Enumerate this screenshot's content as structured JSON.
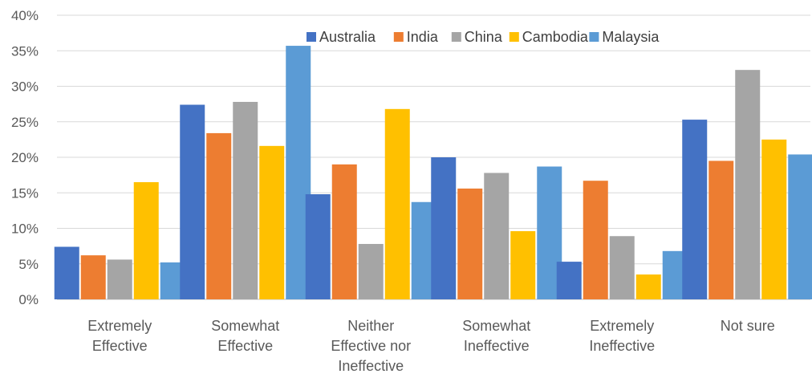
{
  "chart_data": {
    "type": "bar",
    "title": "",
    "xlabel": "",
    "ylabel": "",
    "ylim": [
      0,
      0.4
    ],
    "yticks": [
      "0%",
      "5%",
      "10%",
      "15%",
      "20%",
      "25%",
      "30%",
      "35%",
      "40%"
    ],
    "grid": true,
    "legend_position": "top-right",
    "categories": [
      [
        "Extremely",
        "Effective"
      ],
      [
        "Somewhat",
        "Effective"
      ],
      [
        "Neither",
        "Effective nor",
        "Ineffective"
      ],
      [
        "Somewhat",
        "Ineffective"
      ],
      [
        "Extremely",
        "Ineffective"
      ],
      [
        "Not sure"
      ]
    ],
    "series": [
      {
        "name": "Australia",
        "color": "#4472C4",
        "values": [
          0.074,
          0.274,
          0.148,
          0.2,
          0.053,
          0.253
        ]
      },
      {
        "name": "India",
        "color": "#ED7D31",
        "values": [
          0.062,
          0.234,
          0.19,
          0.156,
          0.167,
          0.195
        ]
      },
      {
        "name": "China",
        "color": "#A5A5A5",
        "values": [
          0.056,
          0.278,
          0.078,
          0.178,
          0.089,
          0.323
        ]
      },
      {
        "name": "Cambodia",
        "color": "#FFC000",
        "values": [
          0.165,
          0.216,
          0.268,
          0.096,
          0.035,
          0.225
        ]
      },
      {
        "name": "Malaysia",
        "color": "#5B9BD5",
        "values": [
          0.052,
          0.357,
          0.137,
          0.187,
          0.068,
          0.204
        ]
      }
    ]
  }
}
